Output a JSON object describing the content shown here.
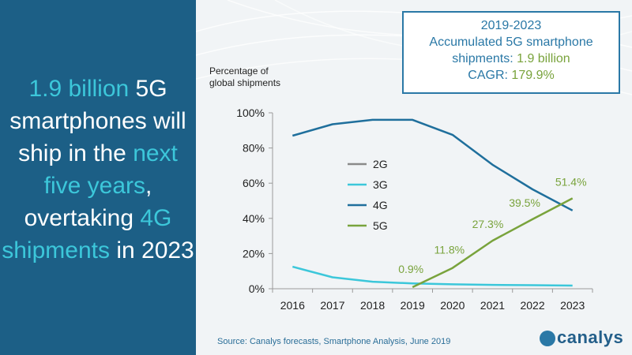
{
  "headline": {
    "p1": "1.9 billion",
    "p2": " 5G smartphones will ship in the ",
    "p3": "next five years",
    "p4": ", overtaking ",
    "p5": "4G shipments",
    "p6": " in 2023"
  },
  "info_box": {
    "line1": "2019-2023",
    "line2": "Accumulated 5G smartphone",
    "line3_label": "shipments: ",
    "line3_value": "1.9 billion",
    "line4_label": "CAGR: ",
    "line4_value": "179.9%"
  },
  "source": "Source:  Canalys forecasts, Smartphone Analysis, June 2019",
  "logo_text": "canalys",
  "chart_data": {
    "type": "line",
    "y_title_line1": "Percentage of",
    "y_title_line2": "global shipments",
    "x": [
      "2016",
      "2017",
      "2018",
      "2019",
      "2020",
      "2021",
      "2022",
      "2023"
    ],
    "ylim": [
      0,
      100
    ],
    "y_ticks": [
      "0%",
      "20%",
      "40%",
      "60%",
      "80%",
      "100%"
    ],
    "series": [
      {
        "name": "2G",
        "color": "#8a8a8a",
        "values": [
          0,
          0,
          0,
          0,
          0,
          0,
          0,
          0
        ]
      },
      {
        "name": "3G",
        "color": "#3cc7da",
        "values": [
          12.5,
          6.5,
          4,
          3,
          2.5,
          2.2,
          2,
          1.8
        ]
      },
      {
        "name": "4G",
        "color": "#1f6f9c",
        "values": [
          87,
          93.5,
          96,
          96,
          87.5,
          70.5,
          56.5,
          44.5
        ]
      },
      {
        "name": "5G",
        "color": "#79a33c",
        "values": [
          null,
          null,
          null,
          0.9,
          11.8,
          27.3,
          39.5,
          51.4
        ]
      }
    ],
    "data_labels": [
      {
        "x": "2019",
        "text": "0.9%"
      },
      {
        "x": "2020",
        "text": "11.8%"
      },
      {
        "x": "2021",
        "text": "27.3%"
      },
      {
        "x": "2022",
        "text": "39.5%"
      },
      {
        "x": "2023",
        "text": "51.4%"
      }
    ]
  }
}
